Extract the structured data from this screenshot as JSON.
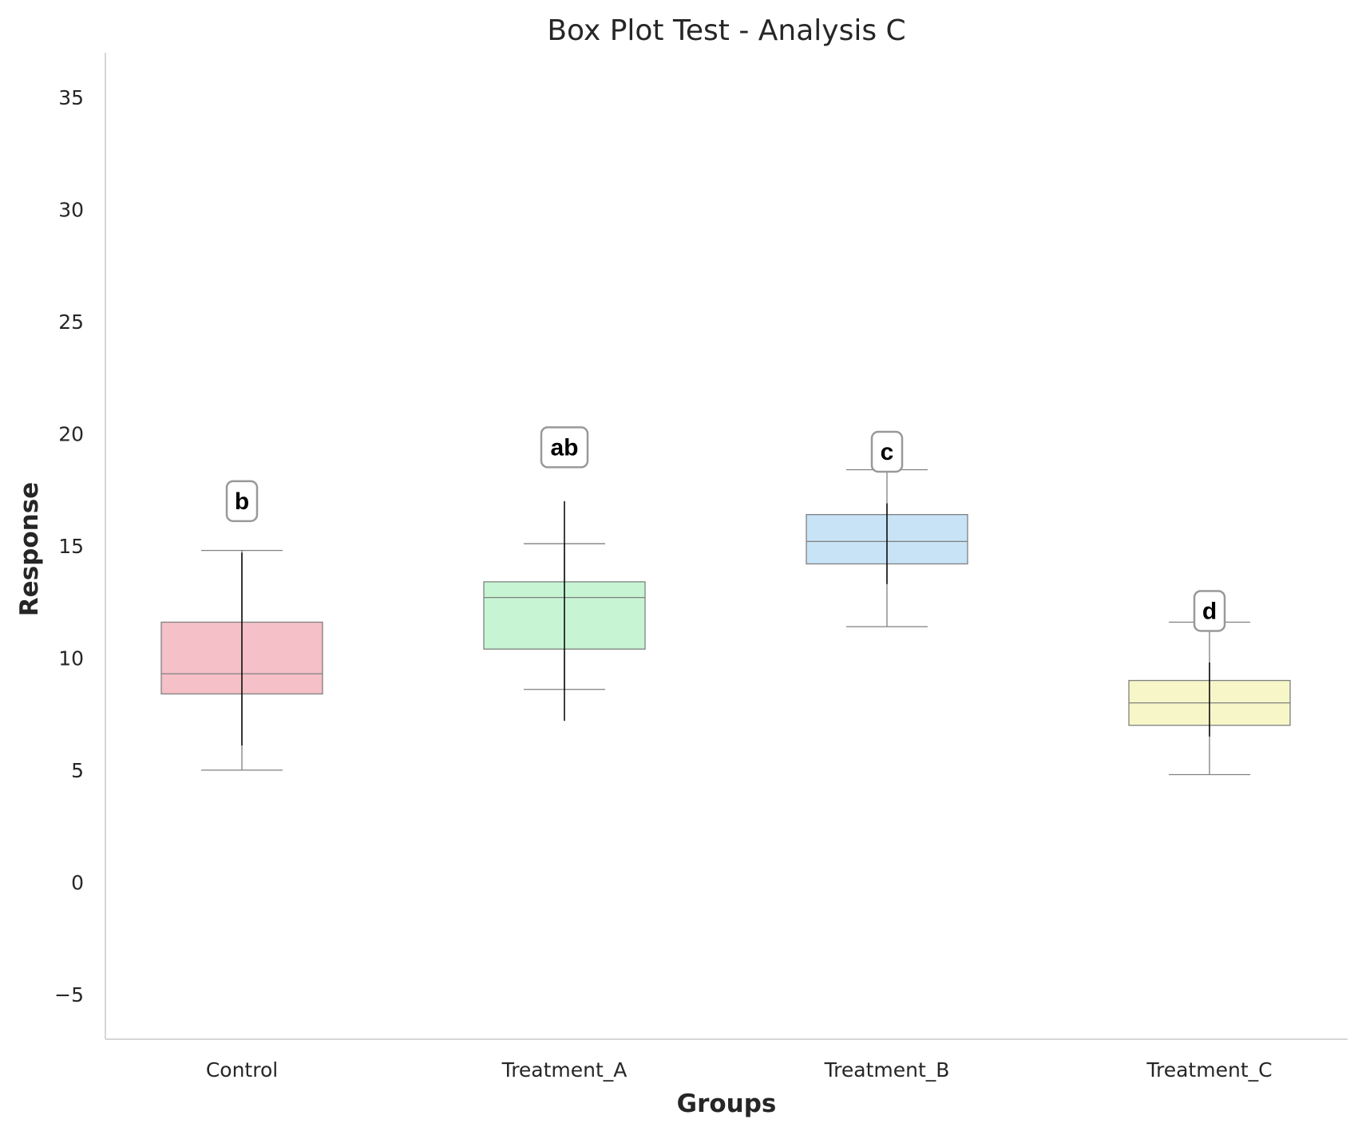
{
  "chart_data": {
    "type": "box",
    "title": "Box Plot Test - Analysis C",
    "xlabel": "Groups",
    "ylabel": "Response",
    "ylim": [
      -7,
      37
    ],
    "yticks": [
      -5,
      0,
      5,
      10,
      15,
      20,
      25,
      30,
      35
    ],
    "ytick_labels": [
      "−5",
      "0",
      "5",
      "10",
      "15",
      "20",
      "25",
      "30",
      "35"
    ],
    "grid": false,
    "categories": [
      "Control",
      "Treatment_A",
      "Treatment_B",
      "Treatment_C"
    ],
    "groups": [
      {
        "name": "Control",
        "whisker_low": 5.0,
        "q1": 8.4,
        "median": 9.3,
        "q3": 11.6,
        "whisker_high": 14.8,
        "error_bar": [
          6.1,
          14.7
        ],
        "sig_letter": "b",
        "sig_y": 17.0,
        "color": "#f5c0c7"
      },
      {
        "name": "Treatment_A",
        "whisker_low": 8.6,
        "q1": 10.4,
        "median": 12.7,
        "q3": 13.4,
        "whisker_high": 15.1,
        "error_bar": [
          7.2,
          17.0
        ],
        "sig_letter": "ab",
        "sig_y": 19.4,
        "color": "#c7f5d4"
      },
      {
        "name": "Treatment_B",
        "whisker_low": 11.4,
        "q1": 14.2,
        "median": 15.2,
        "q3": 16.4,
        "whisker_high": 18.4,
        "error_bar": [
          13.3,
          16.9
        ],
        "sig_letter": "c",
        "sig_y": 19.2,
        "color": "#c8e2f6"
      },
      {
        "name": "Treatment_C",
        "whisker_low": 4.8,
        "q1": 7.0,
        "median": 8.0,
        "q3": 9.0,
        "whisker_high": 11.6,
        "error_bar": [
          6.5,
          9.8
        ],
        "sig_letter": "d",
        "sig_y": 12.1,
        "color": "#f6f6c8"
      }
    ],
    "colors": {
      "box_edge": "#808080",
      "whisker": "#808080",
      "error_bar": "#000000",
      "axis": "#c8c8c8",
      "sig_box_edge": "#999999"
    }
  }
}
